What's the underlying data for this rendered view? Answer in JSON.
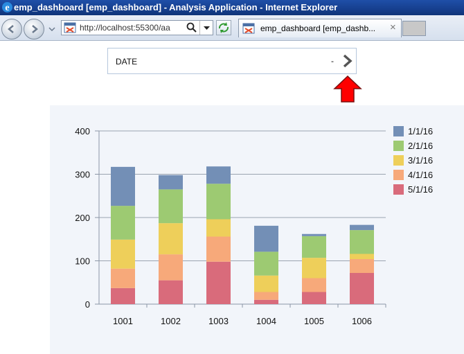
{
  "window": {
    "title": "emp_dashboard [emp_dashboard] - Analysis Application - Internet Explorer"
  },
  "toolbar": {
    "url": "http://localhost:55300/aa",
    "tab_label": "emp_dashboard [emp_dashb...",
    "tab_close": "×"
  },
  "date_filter": {
    "label": "DATE",
    "value": "-"
  },
  "icons": {
    "browser": "internet-explorer-icon",
    "back": "back-arrow-icon",
    "forward": "forward-arrow-icon",
    "search": "search-icon",
    "refresh": "refresh-icon",
    "next": "chevron-right-icon",
    "callout": "red-up-arrow-icon"
  },
  "colors": {
    "callout_arrow": "#ff0000",
    "chevron": "#555555"
  },
  "chart_data": {
    "type": "bar",
    "stacked": true,
    "categories": [
      "1001",
      "1002",
      "1003",
      "1004",
      "1005",
      "1006"
    ],
    "series": [
      {
        "name": "5/1/16",
        "color": "#d96b7b",
        "values": [
          37,
          55,
          98,
          10,
          28,
          72
        ]
      },
      {
        "name": "4/1/16",
        "color": "#f7a97a",
        "values": [
          45,
          60,
          58,
          18,
          32,
          32
        ]
      },
      {
        "name": "3/1/16",
        "color": "#eecf5a",
        "values": [
          67,
          72,
          40,
          38,
          47,
          12
        ]
      },
      {
        "name": "2/1/16",
        "color": "#9dca72",
        "values": [
          78,
          78,
          82,
          55,
          50,
          55
        ]
      },
      {
        "name": "1/1/16",
        "color": "#738fb6",
        "values": [
          90,
          33,
          40,
          60,
          5,
          12
        ]
      }
    ],
    "ylim": [
      0,
      400
    ],
    "yticks": [
      "0",
      "100",
      "200",
      "300",
      "400"
    ],
    "grid": true,
    "legend_position": "top-right",
    "legend_order": [
      "1/1/16",
      "2/1/16",
      "3/1/16",
      "4/1/16",
      "5/1/16"
    ]
  }
}
